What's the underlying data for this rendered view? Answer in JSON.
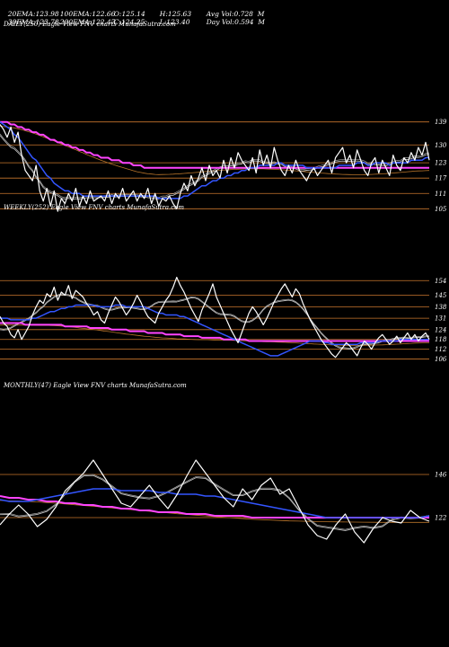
{
  "stats": {
    "row1": [
      {
        "label": "20EMA:",
        "value": "123.98"
      },
      {
        "label": "100EMA:",
        "value": "122.66"
      },
      {
        "label": "O:",
        "value": "125.14"
      },
      {
        "label": "H:",
        "value": "125.63"
      },
      {
        "label": "Avg Vol:",
        "value": "0.728  M"
      }
    ],
    "row2": [
      {
        "label": "30EMA:",
        "value": "123.78"
      },
      {
        "label": "200EMA:",
        "value": "122.47"
      },
      {
        "label": "C:",
        "value": "124.25"
      },
      {
        "label": "L:",
        "value": "123.40"
      },
      {
        "label": "Day Vol:",
        "value": "0.594  M"
      }
    ]
  },
  "colors": {
    "background": "#000000",
    "price": "#ffffff",
    "ema_fast": "#3355ff",
    "ema_slow": "#ff44ff",
    "ema_mid": "#bbbbbb",
    "ema_long": "#b8742a",
    "level_line": "#c8762d"
  },
  "chart_data": [
    {
      "type": "line",
      "title": "DAILY(250) Eagle  View  FNV charts MunafaSutra.com",
      "y_ticks": [
        139,
        130,
        123,
        117,
        111,
        105
      ],
      "ylim": [
        103,
        141
      ],
      "n": 120,
      "price": [
        138,
        136,
        133,
        137,
        131,
        135,
        126,
        120,
        118,
        116,
        122,
        112,
        108,
        113,
        106,
        112,
        104,
        109,
        107,
        111,
        108,
        113,
        106,
        110,
        107,
        112,
        108,
        109,
        110,
        108,
        112,
        107,
        111,
        109,
        113,
        108,
        110,
        112,
        108,
        111,
        109,
        113,
        107,
        111,
        106,
        109,
        108,
        110,
        107,
        105,
        111,
        115,
        112,
        118,
        114,
        117,
        121,
        116,
        122,
        118,
        120,
        117,
        124,
        119,
        125,
        121,
        127,
        124,
        122,
        120,
        125,
        119,
        128,
        122,
        126,
        121,
        129,
        124,
        120,
        118,
        122,
        119,
        124,
        120,
        118,
        116,
        119,
        121,
        118,
        120,
        122,
        124,
        119,
        125,
        127,
        129,
        123,
        126,
        121,
        128,
        124,
        120,
        118,
        123,
        125,
        119,
        124,
        121,
        118,
        126,
        122,
        120,
        125,
        123,
        127,
        124,
        129,
        126,
        131,
        124
      ],
      "ema_fast": [
        139,
        138,
        137,
        136,
        134,
        133,
        131,
        129,
        127,
        125,
        124,
        122,
        120,
        118,
        117,
        115,
        114,
        113,
        112,
        112,
        111,
        111,
        111,
        110,
        110,
        110,
        110,
        110,
        110,
        110,
        110,
        110,
        110,
        110,
        110,
        110,
        110,
        110,
        110,
        110,
        110,
        110,
        110,
        110,
        109,
        109,
        109,
        109,
        109,
        109,
        109,
        110,
        110,
        111,
        112,
        113,
        114,
        114,
        115,
        116,
        116,
        117,
        117,
        118,
        118,
        119,
        119,
        120,
        120,
        121,
        121,
        121,
        122,
        122,
        122,
        122,
        122,
        123,
        123,
        122,
        122,
        122,
        122,
        122,
        122,
        121,
        121,
        121,
        121,
        121,
        121,
        121,
        121,
        121,
        122,
        122,
        122,
        122,
        122,
        123,
        123,
        123,
        122,
        122,
        123,
        123,
        123,
        123,
        122,
        123,
        123,
        123,
        123,
        123,
        124,
        124,
        124,
        124,
        125,
        125
      ],
      "ema_slow": [
        139,
        139,
        139,
        138,
        138,
        137,
        137,
        136,
        136,
        135,
        135,
        134,
        134,
        133,
        132,
        132,
        131,
        131,
        130,
        130,
        129,
        129,
        128,
        128,
        127,
        127,
        126,
        126,
        125,
        125,
        125,
        124,
        124,
        124,
        123,
        123,
        123,
        122,
        122,
        122,
        121,
        121,
        121,
        121,
        121,
        121,
        121,
        121,
        121,
        121,
        121,
        121,
        121,
        121,
        121,
        121,
        121,
        121,
        121,
        121,
        121,
        121,
        121,
        121,
        121,
        121,
        121,
        121,
        121,
        121,
        121,
        121,
        121,
        121,
        121,
        121,
        121,
        121,
        121,
        121,
        121,
        121,
        121,
        121,
        121,
        121,
        121,
        121,
        121,
        121,
        121,
        121,
        121,
        121,
        121,
        121,
        121,
        121,
        121,
        121,
        121,
        121,
        121,
        121,
        121,
        121,
        121,
        121,
        121,
        121,
        121,
        121,
        121,
        121,
        121,
        121,
        121,
        121,
        121,
        121
      ]
    },
    {
      "type": "line",
      "title": "WEEKLY(252) Eagle  View  FNV charts MunafaSutra.com",
      "y_ticks": [
        154,
        145,
        138,
        131,
        124,
        118,
        112,
        106
      ],
      "ylim": [
        103,
        158
      ],
      "n": 120,
      "price": [
        132,
        128,
        126,
        121,
        119,
        124,
        118,
        122,
        126,
        133,
        138,
        142,
        140,
        146,
        144,
        150,
        142,
        147,
        145,
        151,
        143,
        148,
        146,
        144,
        140,
        137,
        133,
        135,
        130,
        128,
        134,
        139,
        144,
        141,
        137,
        133,
        136,
        140,
        145,
        141,
        136,
        132,
        130,
        128,
        134,
        138,
        142,
        145,
        150,
        156,
        151,
        147,
        142,
        137,
        133,
        129,
        136,
        141,
        146,
        152,
        144,
        139,
        134,
        129,
        124,
        120,
        116,
        122,
        128,
        134,
        138,
        135,
        131,
        127,
        131,
        136,
        141,
        145,
        149,
        152,
        148,
        144,
        149,
        146,
        140,
        135,
        130,
        126,
        122,
        118,
        115,
        112,
        109,
        107,
        110,
        113,
        116,
        114,
        111,
        108,
        113,
        117,
        115,
        112,
        116,
        119,
        121,
        118,
        115,
        117,
        120,
        116,
        119,
        122,
        118,
        121,
        117,
        120,
        122,
        118
      ],
      "ema_fast": [
        131,
        131,
        131,
        130,
        130,
        130,
        130,
        130,
        130,
        131,
        131,
        132,
        133,
        134,
        135,
        135,
        136,
        137,
        137,
        138,
        138,
        139,
        139,
        139,
        139,
        139,
        139,
        138,
        138,
        138,
        138,
        138,
        139,
        139,
        139,
        138,
        138,
        138,
        138,
        138,
        138,
        137,
        136,
        135,
        134,
        134,
        133,
        133,
        133,
        133,
        132,
        132,
        131,
        130,
        129,
        128,
        127,
        126,
        125,
        124,
        123,
        122,
        121,
        120,
        119,
        118,
        117,
        116,
        115,
        114,
        113,
        112,
        111,
        110,
        109,
        108,
        108,
        108,
        109,
        110,
        111,
        112,
        113,
        114,
        115,
        116,
        117,
        117,
        117,
        117,
        116,
        116,
        115,
        115,
        115,
        115,
        115,
        115,
        115,
        115,
        116,
        116,
        116,
        116,
        116,
        117,
        117,
        117,
        117,
        117,
        117,
        118,
        118,
        118,
        118,
        118,
        118,
        118,
        118,
        118
      ],
      "ema_slow": [
        128,
        128,
        128,
        128,
        128,
        128,
        128,
        127,
        127,
        127,
        127,
        127,
        127,
        127,
        127,
        127,
        127,
        127,
        126,
        126,
        126,
        126,
        126,
        126,
        126,
        125,
        125,
        125,
        125,
        125,
        125,
        124,
        124,
        124,
        124,
        124,
        123,
        123,
        123,
        123,
        123,
        122,
        122,
        122,
        122,
        122,
        121,
        121,
        121,
        121,
        121,
        120,
        120,
        120,
        120,
        120,
        119,
        119,
        119,
        119,
        119,
        119,
        118,
        118,
        118,
        118,
        118,
        118,
        118,
        117,
        117,
        117,
        117,
        117,
        117,
        117,
        117,
        117,
        117,
        117,
        117,
        117,
        117,
        117,
        117,
        117,
        117,
        117,
        117,
        117,
        117,
        117,
        117,
        117,
        117,
        117,
        117,
        117,
        117,
        117,
        117,
        117,
        117,
        117,
        117,
        117,
        117,
        117,
        117,
        117,
        117,
        117,
        117,
        117,
        117,
        117,
        117,
        117,
        117,
        117
      ]
    },
    {
      "type": "line",
      "title": "MONTHLY(47) Eagle  View  FNV charts MunafaSutra.com",
      "y_ticks": [
        146,
        122
      ],
      "ylim": [
        104,
        160
      ],
      "n": 47,
      "price": [
        118,
        124,
        129,
        124,
        117,
        121,
        128,
        137,
        142,
        147,
        154,
        146,
        138,
        130,
        128,
        134,
        140,
        133,
        127,
        135,
        145,
        154,
        147,
        140,
        133,
        128,
        138,
        132,
        140,
        144,
        135,
        138,
        128,
        118,
        112,
        110,
        118,
        124,
        114,
        108,
        116,
        122,
        120,
        119,
        126,
        122,
        120
      ],
      "ema_fast": [
        132,
        131,
        131,
        131,
        132,
        133,
        134,
        135,
        136,
        137,
        138,
        138,
        138,
        137,
        137,
        137,
        137,
        136,
        136,
        135,
        135,
        135,
        134,
        134,
        133,
        132,
        131,
        130,
        129,
        128,
        127,
        126,
        125,
        124,
        123,
        122,
        122,
        122,
        122,
        122,
        122,
        122,
        122,
        122,
        122,
        122,
        123
      ],
      "ema_slow": [
        134,
        133,
        133,
        132,
        132,
        131,
        131,
        130,
        130,
        129,
        129,
        128,
        128,
        127,
        127,
        126,
        126,
        125,
        125,
        125,
        124,
        124,
        124,
        123,
        123,
        123,
        123,
        122,
        122,
        122,
        122,
        122,
        122,
        122,
        122,
        122,
        122,
        122,
        122,
        122,
        122,
        122,
        122,
        122,
        122,
        122,
        122
      ]
    }
  ]
}
